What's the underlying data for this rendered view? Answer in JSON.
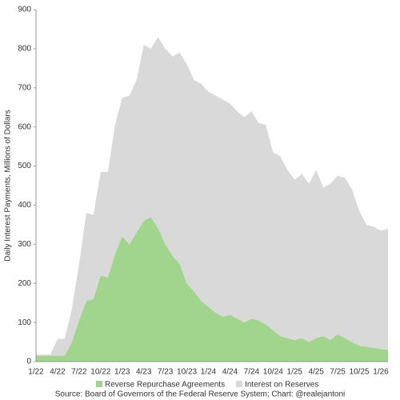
{
  "chart_data": {
    "type": "stacked-area",
    "y_label": "Daily Interest Payments, Millions of Dollars",
    "source": "Source: Board of Governors of the Federal Reserve System; Chart: @realejantoni",
    "categories": [
      "1/22",
      null,
      null,
      "4/22",
      null,
      null,
      "7/22",
      null,
      null,
      "10/22",
      null,
      null,
      "1/23",
      null,
      null,
      "4/23",
      null,
      null,
      "7/23",
      null,
      null,
      "10/23",
      null,
      null,
      "1/24",
      null,
      null,
      "4/24",
      null,
      null,
      "7/24",
      null,
      null,
      "10/24",
      null,
      null,
      "1/25",
      null,
      null,
      "4/25",
      null,
      null,
      "7/25",
      null,
      null,
      "10/25",
      null,
      null,
      "1/26",
      null
    ],
    "series": [
      {
        "name": "Reverse Repurchase Agreements",
        "color": "#a1d48c",
        "values": [
          15,
          15,
          15,
          15,
          15,
          50,
          105,
          155,
          160,
          220,
          215,
          275,
          320,
          300,
          330,
          360,
          370,
          340,
          300,
          270,
          250,
          200,
          180,
          155,
          140,
          125,
          115,
          120,
          110,
          100,
          110,
          105,
          95,
          80,
          65,
          60,
          55,
          60,
          50,
          60,
          65,
          55,
          70,
          60,
          50,
          40,
          38,
          35,
          32,
          30
        ]
      },
      {
        "name": "Interest on Reserves",
        "color": "#d9d9d9",
        "values": [
          3,
          3,
          3,
          43,
          43,
          85,
          145,
          225,
          215,
          265,
          270,
          330,
          355,
          380,
          390,
          450,
          430,
          490,
          500,
          510,
          540,
          560,
          540,
          555,
          550,
          555,
          555,
          540,
          530,
          525,
          530,
          505,
          510,
          455,
          460,
          430,
          410,
          420,
          405,
          430,
          380,
          400,
          405,
          410,
          390,
          345,
          312,
          310,
          303,
          310
        ]
      }
    ],
    "ylim": [
      0,
      900
    ],
    "yticks": [
      0,
      100,
      200,
      300,
      400,
      500,
      600,
      700,
      800,
      900
    ]
  }
}
